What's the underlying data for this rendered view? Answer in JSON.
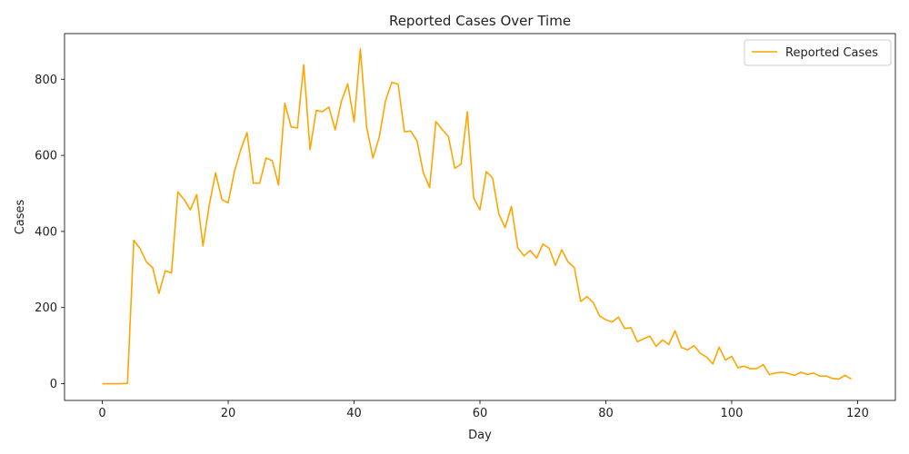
{
  "chart_data": {
    "type": "line",
    "title": "Reported Cases Over Time",
    "xlabel": "Day",
    "ylabel": "Cases",
    "xlim": [
      -6,
      126
    ],
    "ylim": [
      -44,
      920
    ],
    "x_ticks": [
      0,
      20,
      40,
      60,
      80,
      100,
      120
    ],
    "y_ticks": [
      0,
      200,
      400,
      600,
      800
    ],
    "legend_position": "top-right",
    "grid": false,
    "series": [
      {
        "name": "Reported Cases",
        "color": "#ffa500",
        "x": [
          0,
          1,
          2,
          3,
          4,
          5,
          6,
          7,
          8,
          9,
          10,
          11,
          12,
          13,
          14,
          15,
          16,
          17,
          18,
          19,
          20,
          21,
          22,
          23,
          24,
          25,
          26,
          27,
          28,
          29,
          30,
          31,
          32,
          33,
          34,
          35,
          36,
          37,
          38,
          39,
          40,
          41,
          42,
          43,
          44,
          45,
          46,
          47,
          48,
          49,
          50,
          51,
          52,
          53,
          54,
          55,
          56,
          57,
          58,
          59,
          60,
          61,
          62,
          63,
          64,
          65,
          66,
          67,
          68,
          69,
          70,
          71,
          72,
          73,
          74,
          75,
          76,
          77,
          78,
          79,
          80,
          81,
          82,
          83,
          84,
          85,
          86,
          87,
          88,
          89,
          90,
          91,
          92,
          93,
          94,
          95,
          96,
          97,
          98,
          99,
          100,
          101,
          102,
          103,
          104,
          105,
          106,
          107,
          108,
          109,
          110,
          111,
          112,
          113,
          114,
          115,
          116,
          117,
          118,
          119
        ],
        "values": [
          0,
          0,
          0,
          0,
          1,
          377,
          355,
          320,
          305,
          237,
          297,
          291,
          504,
          484,
          457,
          497,
          362,
          470,
          554,
          484,
          475,
          558,
          615,
          660,
          527,
          527,
          593,
          586,
          522,
          737,
          675,
          672,
          838,
          615,
          718,
          715,
          727,
          667,
          743,
          788,
          688,
          880,
          674,
          593,
          648,
          744,
          792,
          787,
          662,
          664,
          638,
          555,
          515,
          689,
          668,
          649,
          566,
          577,
          715,
          488,
          457,
          557,
          541,
          446,
          410,
          466,
          357,
          336,
          350,
          330,
          367,
          356,
          311,
          352,
          320,
          305,
          216,
          229,
          213,
          178,
          168,
          162,
          175,
          145,
          147,
          110,
          118,
          125,
          98,
          115,
          103,
          139,
          95,
          89,
          100,
          80,
          70,
          52,
          96,
          62,
          72,
          42,
          46,
          39,
          40,
          50,
          24,
          28,
          30,
          27,
          22,
          30,
          24,
          28,
          20,
          20,
          14,
          12,
          22,
          12
        ]
      }
    ]
  }
}
